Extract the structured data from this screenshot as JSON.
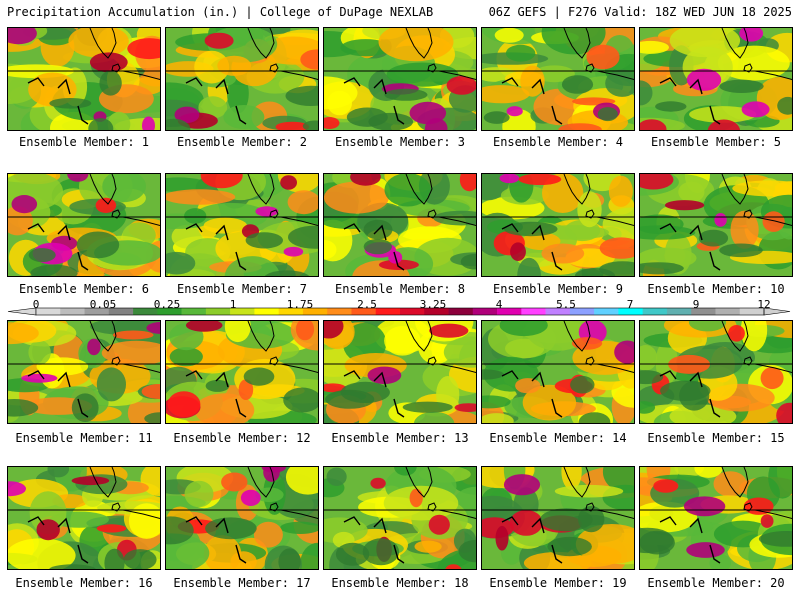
{
  "header": {
    "left": "Precipitation Accumulation (in.) | College of DuPage NEXLAB",
    "right": "06Z GEFS | F276 Valid: 18Z WED JUN 18 2025"
  },
  "panels": [
    {
      "label": "Ensemble Member: 1"
    },
    {
      "label": "Ensemble Member: 2"
    },
    {
      "label": "Ensemble Member: 3"
    },
    {
      "label": "Ensemble Member: 4"
    },
    {
      "label": "Ensemble Member: 5"
    },
    {
      "label": "Ensemble Member: 6"
    },
    {
      "label": "Ensemble Member: 7"
    },
    {
      "label": "Ensemble Member: 8"
    },
    {
      "label": "Ensemble Member: 9"
    },
    {
      "label": "Ensemble Member: 10"
    },
    {
      "label": "Ensemble Member: 11"
    },
    {
      "label": "Ensemble Member: 12"
    },
    {
      "label": "Ensemble Member: 13"
    },
    {
      "label": "Ensemble Member: 14"
    },
    {
      "label": "Ensemble Member: 15"
    },
    {
      "label": "Ensemble Member: 16"
    },
    {
      "label": "Ensemble Member: 17"
    },
    {
      "label": "Ensemble Member: 18"
    },
    {
      "label": "Ensemble Member: 19"
    },
    {
      "label": "Ensemble Member: 20"
    }
  ],
  "colorbar": {
    "ticks": [
      "0",
      "0.05",
      "0.25",
      "1",
      "1.75",
      "2.5",
      "3.25",
      "4",
      "5.5",
      "7",
      "9",
      "12"
    ],
    "colors": [
      "#d9d9d9",
      "#bdbdbd",
      "#9e9e9e",
      "#828282",
      "#3c8a3c",
      "#2e9e2e",
      "#58b83a",
      "#8ccc2a",
      "#c8e41a",
      "#ffff00",
      "#ffd700",
      "#ffb000",
      "#ff8c1a",
      "#ff5a1a",
      "#ff1a1a",
      "#dc0a2a",
      "#b4002a",
      "#8c003c",
      "#b0007a",
      "#e000b0",
      "#ff40ff",
      "#c080ff",
      "#8ca0ff",
      "#60d0ff",
      "#00ffff",
      "#40c8c8",
      "#60b0b0",
      "#909090",
      "#b0b0b0",
      "#d0d0d0"
    ]
  }
}
